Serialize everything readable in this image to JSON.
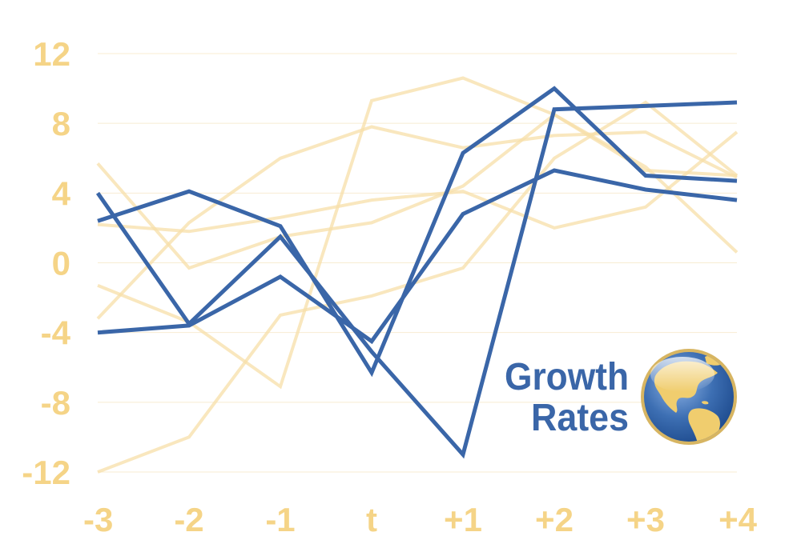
{
  "colors": {
    "background": "#ffffff",
    "faded_series": "#f7dfa8",
    "highlight_series": "#3a66a8",
    "tick_labels": "#f5d487",
    "grid": "#f8ecd2",
    "title": "#3a66a8",
    "globe_ocean": "#3d6fb3",
    "globe_land": "#f0cd6e",
    "globe_rim": "#d7b562"
  },
  "logo": {
    "title_line1": "Growth",
    "title_line2": "Rates",
    "icon": "globe-icon"
  },
  "chart_data": {
    "type": "line",
    "x": [
      "-3",
      "-2",
      "-1",
      "t",
      "+1",
      "+2",
      "+3",
      "+4"
    ],
    "ylim": [
      -12,
      12
    ],
    "yticks": [
      12,
      8,
      4,
      0,
      -4,
      -8,
      -12
    ],
    "grid": true,
    "legend": "none",
    "series": [
      {
        "style": "highlight",
        "values": [
          2.4,
          4.1,
          2.1,
          -6.3,
          6.3,
          10.0,
          5.0,
          4.7
        ]
      },
      {
        "style": "highlight",
        "values": [
          4.0,
          -3.5,
          1.5,
          -5.1,
          -11.0,
          8.8,
          9.0,
          9.2
        ]
      },
      {
        "style": "highlight",
        "values": [
          -4.0,
          -3.6,
          -0.8,
          -4.5,
          2.8,
          5.3,
          4.2,
          3.6
        ]
      },
      {
        "style": "faded",
        "values": [
          -12.0,
          -10.0,
          -3.0,
          -1.9,
          -0.3,
          6.0,
          9.2,
          5.0
        ]
      },
      {
        "style": "faded",
        "values": [
          5.7,
          -0.3,
          1.5,
          2.3,
          4.4,
          8.5,
          5.5,
          0.6
        ]
      },
      {
        "style": "faded",
        "values": [
          -3.2,
          2.3,
          6.0,
          7.8,
          6.6,
          7.3,
          7.5,
          4.9
        ]
      },
      {
        "style": "faded",
        "values": [
          2.2,
          1.8,
          2.6,
          3.6,
          4.1,
          2.0,
          3.2,
          7.5
        ]
      },
      {
        "style": "faded",
        "values": [
          -1.3,
          -3.4,
          -7.1,
          9.3,
          10.6,
          8.5,
          5.3,
          5.0
        ]
      }
    ]
  }
}
